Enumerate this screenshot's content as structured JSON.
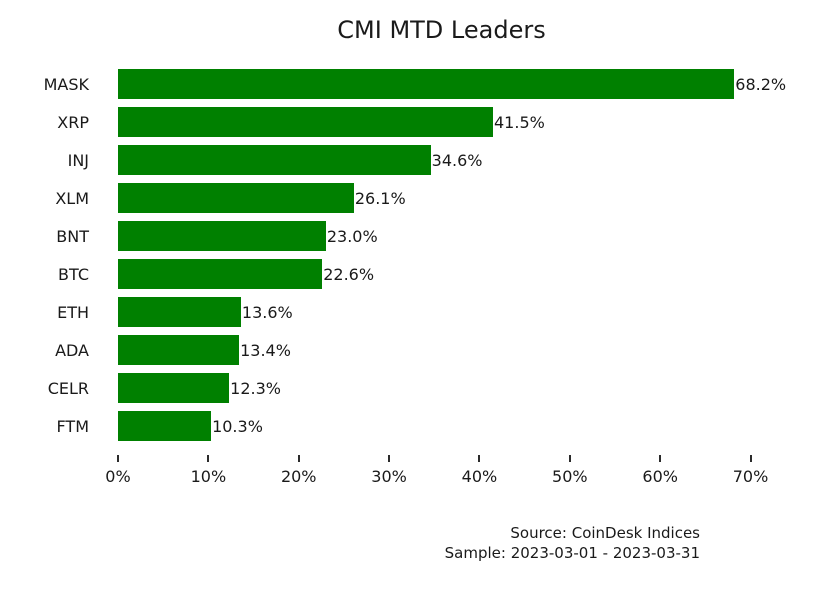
{
  "chart_data": {
    "type": "bar",
    "orientation": "horizontal",
    "title": "CMI MTD Leaders",
    "categories": [
      "MASK",
      "XRP",
      "INJ",
      "XLM",
      "BNT",
      "BTC",
      "ETH",
      "ADA",
      "CELR",
      "FTM"
    ],
    "values": [
      68.2,
      41.5,
      34.6,
      26.1,
      23.0,
      22.6,
      13.6,
      13.4,
      12.3,
      10.3
    ],
    "value_labels": [
      "68.2%",
      "41.5%",
      "34.6%",
      "26.1%",
      "23.0%",
      "22.6%",
      "13.6%",
      "13.4%",
      "12.3%",
      "10.3%"
    ],
    "x_tick_values": [
      0,
      10,
      20,
      30,
      40,
      50,
      60,
      70
    ],
    "x_tick_labels": [
      "0%",
      "10%",
      "20%",
      "30%",
      "40%",
      "50%",
      "60%",
      "70%"
    ],
    "xlim": [
      0,
      71.6
    ],
    "bar_color": "#008000",
    "grid": false,
    "legend": "none",
    "source_line": "Source: CoinDesk Indices",
    "sample_line": "Sample: 2023-03-01 - 2023-03-31"
  }
}
